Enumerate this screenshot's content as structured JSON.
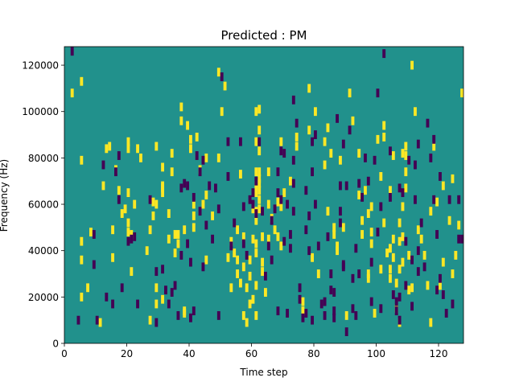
{
  "chart_data": {
    "type": "heatmap",
    "title": "Predicted : PM",
    "xlabel": "Time step",
    "ylabel": "Frequency (Hz)",
    "xlim": [
      0,
      128
    ],
    "ylim": [
      0,
      128000
    ],
    "x_ticks": [
      0,
      20,
      40,
      60,
      80,
      100,
      120
    ],
    "x_tick_labels": [
      "0",
      "20",
      "40",
      "60",
      "80",
      "100",
      "120"
    ],
    "y_ticks": [
      0,
      20000,
      40000,
      60000,
      80000,
      100000,
      120000
    ],
    "y_tick_labels": [
      "0",
      "20000",
      "40000",
      "60000",
      "80000",
      "100000",
      "120000"
    ],
    "colormap": "viridis",
    "colors": {
      "background": "#21918c",
      "high": "#fde725",
      "low": "#440154"
    },
    "grid": false,
    "cell_size": {
      "time_steps": 1,
      "frequency_hz": 3765
    },
    "yellow_cells": [
      [
        2,
        108000
      ],
      [
        5,
        113000
      ],
      [
        5,
        79000
      ],
      [
        5,
        44000
      ],
      [
        5,
        36000
      ],
      [
        5,
        20000
      ],
      [
        7,
        24000
      ],
      [
        8,
        48000
      ],
      [
        11,
        9000
      ],
      [
        12,
        68000
      ],
      [
        13,
        84000
      ],
      [
        14,
        85000
      ],
      [
        15,
        49000
      ],
      [
        15,
        37000
      ],
      [
        16,
        75000
      ],
      [
        17,
        66000
      ],
      [
        18,
        56000
      ],
      [
        19,
        58000
      ],
      [
        20,
        87000
      ],
      [
        20,
        84000
      ],
      [
        20,
        65000
      ],
      [
        20,
        52000
      ],
      [
        20,
        48000
      ],
      [
        21,
        47000
      ],
      [
        21,
        31000
      ],
      [
        22,
        60000
      ],
      [
        23,
        84000
      ],
      [
        24,
        80000
      ],
      [
        26,
        40000
      ],
      [
        27,
        49000
      ],
      [
        27,
        10000
      ],
      [
        28,
        61000
      ],
      [
        28,
        55000
      ],
      [
        29,
        85000
      ],
      [
        29,
        60000
      ],
      [
        29,
        24000
      ],
      [
        29,
        17000
      ],
      [
        31,
        76000
      ],
      [
        31,
        68000
      ],
      [
        31,
        67000
      ],
      [
        31,
        65000
      ],
      [
        31,
        19000
      ],
      [
        33,
        56000
      ],
      [
        33,
        45000
      ],
      [
        34,
        82000
      ],
      [
        34,
        74000
      ],
      [
        35,
        47000
      ],
      [
        35,
        39000
      ],
      [
        36,
        47000
      ],
      [
        36,
        43000
      ],
      [
        37,
        102000
      ],
      [
        37,
        96000
      ],
      [
        38,
        49000
      ],
      [
        38,
        14000
      ],
      [
        38,
        13000
      ],
      [
        39,
        94000
      ],
      [
        40,
        88000
      ],
      [
        40,
        84000
      ],
      [
        41,
        60000
      ],
      [
        41,
        55000
      ],
      [
        41,
        50000
      ],
      [
        42,
        89000
      ],
      [
        43,
        75000
      ],
      [
        44,
        60000
      ],
      [
        45,
        80000
      ],
      [
        45,
        64000
      ],
      [
        45,
        36000
      ],
      [
        47,
        55000
      ],
      [
        49,
        117000
      ],
      [
        49,
        80000
      ],
      [
        50,
        100000
      ],
      [
        51,
        111000
      ],
      [
        52,
        37000
      ],
      [
        53,
        44000
      ],
      [
        53,
        24000
      ],
      [
        54,
        39000
      ],
      [
        55,
        49000
      ],
      [
        55,
        36000
      ],
      [
        55,
        30000
      ],
      [
        56,
        73000
      ],
      [
        56,
        26000
      ],
      [
        57,
        46000
      ],
      [
        57,
        33000
      ],
      [
        57,
        12000
      ],
      [
        58,
        9000
      ],
      [
        58,
        24000
      ],
      [
        59,
        36000
      ],
      [
        59,
        29000
      ],
      [
        59,
        17000
      ],
      [
        60,
        19000
      ],
      [
        60,
        58000
      ],
      [
        60,
        45000
      ],
      [
        61,
        100000
      ],
      [
        61,
        87000
      ],
      [
        61,
        74000
      ],
      [
        61,
        68000
      ],
      [
        61,
        65000
      ],
      [
        61,
        57000
      ],
      [
        61,
        53000
      ],
      [
        61,
        43000
      ],
      [
        61,
        39000
      ],
      [
        61,
        25000
      ],
      [
        61,
        12000
      ],
      [
        62,
        101000
      ],
      [
        62,
        92000
      ],
      [
        62,
        83000
      ],
      [
        62,
        74000
      ],
      [
        62,
        71000
      ],
      [
        62,
        69000
      ],
      [
        62,
        66000
      ],
      [
        62,
        62000
      ],
      [
        62,
        58000
      ],
      [
        63,
        46000
      ],
      [
        63,
        35000
      ],
      [
        63,
        31000
      ],
      [
        64,
        22000
      ],
      [
        65,
        74000
      ],
      [
        65,
        60000
      ],
      [
        65,
        45000
      ],
      [
        66,
        54000
      ],
      [
        67,
        49000
      ],
      [
        68,
        61000
      ],
      [
        68,
        46000
      ],
      [
        69,
        87000
      ],
      [
        69,
        59000
      ],
      [
        69,
        42000
      ],
      [
        70,
        65000
      ],
      [
        72,
        70000
      ],
      [
        74,
        89000
      ],
      [
        74,
        85000
      ],
      [
        76,
        18000
      ],
      [
        76,
        14000
      ],
      [
        78,
        110000
      ],
      [
        78,
        92000
      ],
      [
        79,
        37000
      ],
      [
        80,
        100000
      ],
      [
        81,
        30000
      ],
      [
        83,
        77000
      ],
      [
        83,
        87000
      ],
      [
        84,
        93000
      ],
      [
        84,
        57000
      ],
      [
        85,
        82000
      ],
      [
        86,
        50000
      ],
      [
        86,
        47000
      ],
      [
        87,
        42000
      ],
      [
        87,
        40000
      ],
      [
        88,
        79000
      ],
      [
        89,
        50000
      ],
      [
        90,
        12000
      ],
      [
        91,
        108000
      ],
      [
        92,
        96000
      ],
      [
        94,
        82000
      ],
      [
        94,
        64000
      ],
      [
        95,
        53000
      ],
      [
        95,
        47000
      ],
      [
        96,
        66000
      ],
      [
        97,
        56000
      ],
      [
        97,
        30000
      ],
      [
        97,
        28000
      ],
      [
        98,
        59000
      ],
      [
        98,
        48000
      ],
      [
        98,
        43000
      ],
      [
        99,
        13000
      ],
      [
        100,
        88000
      ],
      [
        101,
        72000
      ],
      [
        101,
        32000
      ],
      [
        102,
        94000
      ],
      [
        102,
        89000
      ],
      [
        102,
        52000
      ],
      [
        103,
        39000
      ],
      [
        104,
        66000
      ],
      [
        104,
        41000
      ],
      [
        104,
        32000
      ],
      [
        104,
        28000
      ],
      [
        105,
        81000
      ],
      [
        105,
        45000
      ],
      [
        105,
        37000
      ],
      [
        106,
        26000
      ],
      [
        106,
        15000
      ],
      [
        107,
        52000
      ],
      [
        107,
        44000
      ],
      [
        107,
        32000
      ],
      [
        107,
        9000
      ],
      [
        108,
        82000
      ],
      [
        108,
        59000
      ],
      [
        108,
        46000
      ],
      [
        108,
        35000
      ],
      [
        109,
        85000
      ],
      [
        109,
        81000
      ],
      [
        109,
        74000
      ],
      [
        109,
        67000
      ],
      [
        110,
        38000
      ],
      [
        110,
        23000
      ],
      [
        111,
        120000
      ],
      [
        111,
        24000
      ],
      [
        112,
        100000
      ],
      [
        113,
        49000
      ],
      [
        114,
        45000
      ],
      [
        115,
        38000
      ],
      [
        116,
        25000
      ],
      [
        117,
        57000
      ],
      [
        117,
        9000
      ],
      [
        118,
        85000
      ],
      [
        119,
        61000
      ],
      [
        120,
        25000
      ],
      [
        121,
        35000
      ],
      [
        121,
        68000
      ],
      [
        123,
        53000
      ],
      [
        124,
        71000
      ],
      [
        124,
        30000
      ],
      [
        125,
        38000
      ],
      [
        126,
        51000
      ],
      [
        127,
        108000
      ]
    ],
    "purple_cells": [
      [
        2,
        126000
      ],
      [
        4,
        10000
      ],
      [
        9,
        34000
      ],
      [
        9,
        47000
      ],
      [
        10,
        10000
      ],
      [
        12,
        77000
      ],
      [
        13,
        20000
      ],
      [
        15,
        17000
      ],
      [
        16,
        74000
      ],
      [
        17,
        81000
      ],
      [
        17,
        62000
      ],
      [
        18,
        24000
      ],
      [
        20,
        44000
      ],
      [
        21,
        45000
      ],
      [
        22,
        46000
      ],
      [
        23,
        17000
      ],
      [
        27,
        62000
      ],
      [
        29,
        31000
      ],
      [
        29,
        9000
      ],
      [
        31,
        32000
      ],
      [
        32,
        23000
      ],
      [
        33,
        17000
      ],
      [
        34,
        22000
      ],
      [
        35,
        25000
      ],
      [
        36,
        12000
      ],
      [
        37,
        38000
      ],
      [
        37,
        67000
      ],
      [
        38,
        69000
      ],
      [
        39,
        68000
      ],
      [
        39,
        43000
      ],
      [
        40,
        35000
      ],
      [
        40,
        11000
      ],
      [
        41,
        63000
      ],
      [
        41,
        14000
      ],
      [
        42,
        81000
      ],
      [
        43,
        74000
      ],
      [
        43,
        57000
      ],
      [
        44,
        79000
      ],
      [
        44,
        33000
      ],
      [
        45,
        51000
      ],
      [
        46,
        68000
      ],
      [
        47,
        45000
      ],
      [
        48,
        67000
      ],
      [
        49,
        58000
      ],
      [
        49,
        12000
      ],
      [
        50,
        115000
      ],
      [
        52,
        87000
      ],
      [
        52,
        72000
      ],
      [
        53,
        42000
      ],
      [
        54,
        52000
      ],
      [
        56,
        87000
      ],
      [
        57,
        59000
      ],
      [
        57,
        43000
      ],
      [
        58,
        38000
      ],
      [
        59,
        62000
      ],
      [
        60,
        65000
      ],
      [
        60,
        60000
      ],
      [
        61,
        56000
      ],
      [
        61,
        70000
      ],
      [
        62,
        87000
      ],
      [
        63,
        57000
      ],
      [
        64,
        29000
      ],
      [
        65,
        42000
      ],
      [
        66,
        53000
      ],
      [
        66,
        36000
      ],
      [
        67,
        58000
      ],
      [
        68,
        74000
      ],
      [
        68,
        65000
      ],
      [
        68,
        14000
      ],
      [
        69,
        83000
      ],
      [
        69,
        62000
      ],
      [
        70,
        82000
      ],
      [
        70,
        44000
      ],
      [
        71,
        60000
      ],
      [
        71,
        13000
      ],
      [
        72,
        47000
      ],
      [
        72,
        41000
      ],
      [
        73,
        105000
      ],
      [
        73,
        79000
      ],
      [
        73,
        69000
      ],
      [
        73,
        57000
      ],
      [
        74,
        95000
      ],
      [
        75,
        24000
      ],
      [
        75,
        19000
      ],
      [
        76,
        11000
      ],
      [
        77,
        66000
      ],
      [
        77,
        49000
      ],
      [
        77,
        13000
      ],
      [
        78,
        55000
      ],
      [
        78,
        40000
      ],
      [
        79,
        87000
      ],
      [
        79,
        74000
      ],
      [
        79,
        10000
      ],
      [
        80,
        90000
      ],
      [
        80,
        60000
      ],
      [
        81,
        42000
      ],
      [
        82,
        17000
      ],
      [
        83,
        18000
      ],
      [
        83,
        12000
      ],
      [
        84,
        46000
      ],
      [
        85,
        30000
      ],
      [
        85,
        23000
      ],
      [
        86,
        22000
      ],
      [
        86,
        14000
      ],
      [
        86,
        11000
      ],
      [
        87,
        97000
      ],
      [
        88,
        68000
      ],
      [
        88,
        57000
      ],
      [
        88,
        52000
      ],
      [
        89,
        86000
      ],
      [
        89,
        34000
      ],
      [
        89,
        33000
      ],
      [
        90,
        68000
      ],
      [
        90,
        5000
      ],
      [
        91,
        92000
      ],
      [
        92,
        28000
      ],
      [
        92,
        15000
      ],
      [
        93,
        41000
      ],
      [
        93,
        12000
      ],
      [
        94,
        69000
      ],
      [
        94,
        30000
      ],
      [
        95,
        63000
      ],
      [
        96,
        80000
      ],
      [
        97,
        70000
      ],
      [
        98,
        35000
      ],
      [
        98,
        18000
      ],
      [
        99,
        79000
      ],
      [
        100,
        108000
      ],
      [
        100,
        48000
      ],
      [
        101,
        59000
      ],
      [
        101,
        15000
      ],
      [
        102,
        125000
      ],
      [
        104,
        83000
      ],
      [
        104,
        63000
      ],
      [
        105,
        21000
      ],
      [
        106,
        18000
      ],
      [
        106,
        14000
      ],
      [
        107,
        67000
      ],
      [
        107,
        20000
      ],
      [
        107,
        10000
      ],
      [
        108,
        65000
      ],
      [
        109,
        44000
      ],
      [
        109,
        25000
      ],
      [
        110,
        79000
      ],
      [
        111,
        36000
      ],
      [
        111,
        16000
      ],
      [
        112,
        77000
      ],
      [
        112,
        62000
      ],
      [
        113,
        86000
      ],
      [
        113,
        40000
      ],
      [
        113,
        31000
      ],
      [
        114,
        52000
      ],
      [
        115,
        33000
      ],
      [
        116,
        95000
      ],
      [
        117,
        80000
      ],
      [
        118,
        88000
      ],
      [
        118,
        62000
      ],
      [
        119,
        47000
      ],
      [
        119,
        23000
      ],
      [
        120,
        72000
      ],
      [
        120,
        28000
      ],
      [
        121,
        21000
      ],
      [
        122,
        13000
      ],
      [
        123,
        62000
      ],
      [
        124,
        17000
      ],
      [
        126,
        62000
      ],
      [
        126,
        45000
      ],
      [
        127,
        45000
      ]
    ]
  }
}
